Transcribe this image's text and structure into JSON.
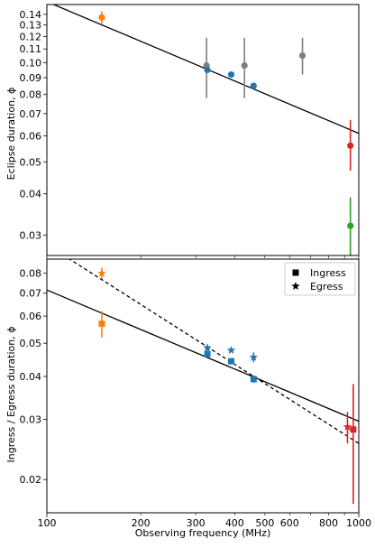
{
  "chart_data": [
    {
      "type": "scatter",
      "panel": "top",
      "xscale": "log",
      "yscale": "log",
      "xlim": [
        100,
        1000
      ],
      "ylim": [
        0.026,
        0.15
      ],
      "xlabel": "",
      "ylabel": "Eclipse duration, ϕ",
      "y_ticks": [
        0.03,
        0.04,
        0.05,
        0.06,
        0.07,
        0.08,
        0.09,
        0.1,
        0.11,
        0.12,
        0.13,
        0.14
      ],
      "y_tick_labels": [
        "0.03",
        "0.04",
        "0.05",
        "0.06",
        "0.07",
        "0.08",
        "0.09",
        "0.10",
        "0.11",
        "0.12",
        "0.13",
        "0.14"
      ],
      "x_ticks": [
        100,
        200,
        300,
        400,
        500,
        600,
        800,
        1000
      ],
      "series": [
        {
          "color": "#ff7f0e",
          "marker": "circle",
          "points": [
            {
              "x": 150,
              "y": 0.137,
              "yerr_low": 0.131,
              "yerr_high": 0.143
            }
          ]
        },
        {
          "color": "#7f7f7f",
          "marker": "circle",
          "points": [
            {
              "x": 325,
              "y": 0.098,
              "yerr_low": 0.078,
              "yerr_high": 0.119
            },
            {
              "x": 430,
              "y": 0.098,
              "yerr_low": 0.078,
              "yerr_high": 0.119
            },
            {
              "x": 660,
              "y": 0.105,
              "yerr_low": 0.092,
              "yerr_high": 0.119
            }
          ]
        },
        {
          "color": "#1f77b4",
          "marker": "circle",
          "points": [
            {
              "x": 327,
              "y": 0.095
            },
            {
              "x": 390,
              "y": 0.092
            },
            {
              "x": 460,
              "y": 0.085
            }
          ]
        },
        {
          "color": "#d62728",
          "marker": "circle",
          "points": [
            {
              "x": 940,
              "y": 0.056,
              "yerr_low": 0.047,
              "yerr_high": 0.067
            }
          ]
        },
        {
          "color": "#2ca02c",
          "marker": "circle",
          "points": [
            {
              "x": 940,
              "y": 0.032,
              "yerr_low": 0.026,
              "yerr_high": 0.039
            }
          ]
        }
      ],
      "fit_lines": [
        {
          "style": "solid",
          "color": "#000000",
          "x": [
            100,
            1000
          ],
          "y": [
            0.153,
            0.061
          ]
        }
      ]
    },
    {
      "type": "scatter",
      "panel": "bottom",
      "xscale": "log",
      "yscale": "log",
      "xlim": [
        100,
        1000
      ],
      "ylim": [
        0.016,
        0.088
      ],
      "xlabel": "Observing frequency (MHz)",
      "ylabel": "Ingress / Egress duration, ϕ",
      "y_ticks": [
        0.02,
        0.03,
        0.04,
        0.05,
        0.06,
        0.07,
        0.08
      ],
      "y_tick_labels": [
        "0.02",
        "0.03",
        "0.04",
        "0.05",
        "0.06",
        "0.07",
        "0.08"
      ],
      "x_ticks": [
        100,
        200,
        300,
        400,
        500,
        600,
        800,
        1000
      ],
      "x_tick_labels": [
        "100",
        "200",
        "300",
        "400",
        "500",
        "600",
        "800",
        "1000"
      ],
      "legend": {
        "position": "top-right",
        "entries": [
          {
            "label": "Ingress",
            "marker": "square"
          },
          {
            "label": "Egress",
            "marker": "star"
          }
        ]
      },
      "series": [
        {
          "color": "#ff7f0e",
          "marker": "square",
          "points": [
            {
              "x": 150,
              "y": 0.057,
              "yerr_low": 0.052,
              "yerr_high": 0.062
            }
          ]
        },
        {
          "color": "#ff7f0e",
          "marker": "star",
          "points": [
            {
              "x": 150,
              "y": 0.08,
              "yerr_low": 0.077,
              "yerr_high": 0.083
            }
          ]
        },
        {
          "color": "#1f77b4",
          "marker": "square",
          "points": [
            {
              "x": 327,
              "y": 0.0465
            },
            {
              "x": 390,
              "y": 0.0443
            },
            {
              "x": 460,
              "y": 0.0393,
              "yerr_low": 0.0383,
              "yerr_high": 0.0403
            }
          ]
        },
        {
          "color": "#1f77b4",
          "marker": "star",
          "points": [
            {
              "x": 327,
              "y": 0.0485,
              "yerr_low": 0.0475,
              "yerr_high": 0.0495
            },
            {
              "x": 390,
              "y": 0.0477
            },
            {
              "x": 460,
              "y": 0.0455,
              "yerr_low": 0.044,
              "yerr_high": 0.047
            }
          ]
        },
        {
          "color": "#d62728",
          "marker": "square",
          "points": [
            {
              "x": 960,
              "y": 0.028,
              "yerr_low": 0.017,
              "yerr_high": 0.038
            }
          ]
        },
        {
          "color": "#d62728",
          "marker": "star",
          "points": [
            {
              "x": 920,
              "y": 0.0285,
              "yerr_low": 0.0255,
              "yerr_high": 0.0315
            }
          ]
        }
      ],
      "fit_lines": [
        {
          "style": "solid",
          "color": "#000000",
          "x": [
            100,
            1000
          ],
          "y": [
            0.0715,
            0.0296
          ]
        },
        {
          "style": "dashed",
          "color": "#000000",
          "x": [
            100,
            1000
          ],
          "y": [
            0.097,
            0.0255
          ]
        }
      ]
    }
  ]
}
